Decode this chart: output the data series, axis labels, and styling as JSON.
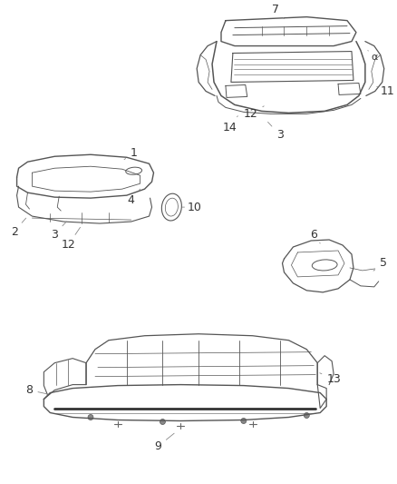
{
  "bg_color": "#ffffff",
  "line_color": "#555555",
  "label_color": "#333333",
  "fontsize": 9
}
